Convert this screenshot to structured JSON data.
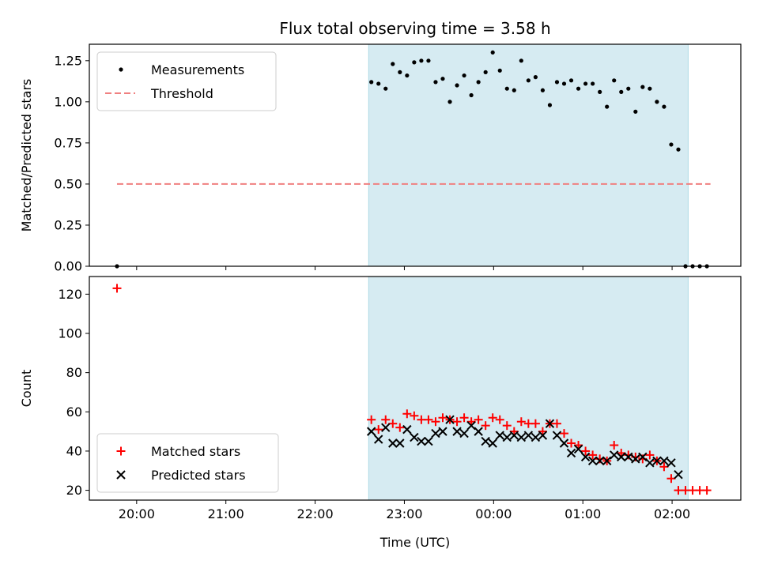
{
  "chart_data": {
    "type": "scatter",
    "title": "Flux total observing time = 3.58 h",
    "xlabel": "Time (UTC)",
    "x_tick_labels": [
      "20:00",
      "21:00",
      "22:00",
      "23:00",
      "00:00",
      "01:00",
      "02:00"
    ],
    "x_tick_hours": [
      20,
      21,
      22,
      23,
      24,
      25,
      26
    ],
    "xlim": [
      19.47,
      26.77
    ],
    "shaded_interval": {
      "start": 22.6,
      "end": 26.18,
      "color": "#add8e6"
    },
    "panels": [
      {
        "ylabel": "Matched/Predicted stars",
        "ylim": [
          0,
          1.35
        ],
        "y_ticks": [
          0.0,
          0.25,
          0.5,
          0.75,
          1.0,
          1.25
        ],
        "y_tick_labels": [
          "0.00",
          "0.25",
          "0.50",
          "0.75",
          "1.00",
          "1.25"
        ],
        "legend_position": "upper left",
        "series": [
          {
            "name": "Measurements",
            "marker": "dot",
            "color": "#000000",
            "x": [
              19.78,
              22.63,
              22.71,
              22.79,
              22.87,
              22.95,
              23.03,
              23.11,
              23.19,
              23.27,
              23.35,
              23.43,
              23.51,
              23.59,
              23.67,
              23.75,
              23.83,
              23.91,
              23.99,
              24.07,
              24.15,
              24.23,
              24.31,
              24.39,
              24.47,
              24.55,
              24.63,
              24.71,
              24.79,
              24.87,
              24.95,
              25.03,
              25.11,
              25.19,
              25.27,
              25.35,
              25.43,
              25.51,
              25.59,
              25.67,
              25.75,
              25.83,
              25.91,
              25.99,
              26.07,
              26.15,
              26.23,
              26.31,
              26.39
            ],
            "y": [
              0.0,
              1.12,
              1.11,
              1.08,
              1.23,
              1.18,
              1.16,
              1.24,
              1.25,
              1.25,
              1.12,
              1.14,
              1.0,
              1.1,
              1.16,
              1.04,
              1.12,
              1.18,
              1.3,
              1.19,
              1.08,
              1.07,
              1.25,
              1.13,
              1.15,
              1.07,
              0.98,
              1.12,
              1.11,
              1.13,
              1.08,
              1.11,
              1.11,
              1.06,
              0.97,
              1.13,
              1.06,
              1.08,
              0.94,
              1.09,
              1.08,
              1.0,
              0.97,
              0.74,
              0.71,
              0.0,
              0.0,
              0.0,
              0.0
            ],
            "y_x_override_note": ""
          },
          {
            "name": "Threshold",
            "marker": "dashed-line",
            "color": "#f08080",
            "x": [
              19.78,
              26.43
            ],
            "y": [
              0.5,
              0.5
            ]
          }
        ]
      },
      {
        "ylabel": "Count",
        "ylim": [
          15,
          129
        ],
        "y_ticks": [
          20,
          40,
          60,
          80,
          100,
          120
        ],
        "y_tick_labels": [
          "20",
          "40",
          "60",
          "80",
          "100",
          "120"
        ],
        "legend_position": "lower left",
        "series": [
          {
            "name": "Matched stars",
            "marker": "plus",
            "color": "#ff0000",
            "x": [
              19.78,
              22.63,
              22.71,
              22.79,
              22.87,
              22.95,
              23.03,
              23.11,
              23.19,
              23.27,
              23.35,
              23.43,
              23.51,
              23.59,
              23.67,
              23.75,
              23.83,
              23.91,
              23.99,
              24.07,
              24.15,
              24.23,
              24.31,
              24.39,
              24.47,
              24.55,
              24.63,
              24.71,
              24.79,
              24.87,
              24.95,
              25.03,
              25.11,
              25.19,
              25.27,
              25.35,
              25.43,
              25.51,
              25.59,
              25.67,
              25.75,
              25.83,
              25.91,
              25.99,
              26.07,
              26.15,
              26.23,
              26.31,
              26.39
            ],
            "y": [
              123,
              56,
              51,
              56,
              54,
              52,
              59,
              58,
              56,
              56,
              55,
              57,
              56,
              55,
              57,
              55,
              56,
              53,
              57,
              56,
              53,
              50,
              55,
              54,
              54,
              50,
              54,
              54,
              49,
              44,
              43,
              40,
              38,
              36,
              35,
              43,
              39,
              38,
              37,
              36,
              38,
              35,
              32,
              26,
              20,
              20,
              20,
              20,
              20
            ]
          },
          {
            "name": "Predicted stars",
            "marker": "cross",
            "color": "#000000",
            "x": [
              22.63,
              22.71,
              22.79,
              22.87,
              22.95,
              23.03,
              23.11,
              23.19,
              23.27,
              23.35,
              23.43,
              23.51,
              23.59,
              23.67,
              23.75,
              23.83,
              23.91,
              23.99,
              24.07,
              24.15,
              24.23,
              24.31,
              24.39,
              24.47,
              24.55,
              24.63,
              24.71,
              24.79,
              24.87,
              24.95,
              25.03,
              25.11,
              25.19,
              25.27,
              25.35,
              25.43,
              25.51,
              25.59,
              25.67,
              25.75,
              25.83,
              25.91,
              25.99,
              26.07
            ],
            "y": [
              50,
              46,
              52,
              44,
              44,
              51,
              47,
              45,
              45,
              49,
              50,
              56,
              50,
              49,
              53,
              50,
              45,
              44,
              48,
              47,
              48,
              47,
              48,
              47,
              48,
              54,
              48,
              44,
              39,
              41,
              37,
              35,
              35,
              35,
              38,
              37,
              37,
              36,
              37,
              34,
              35,
              35,
              34,
              28
            ]
          }
        ]
      }
    ]
  }
}
